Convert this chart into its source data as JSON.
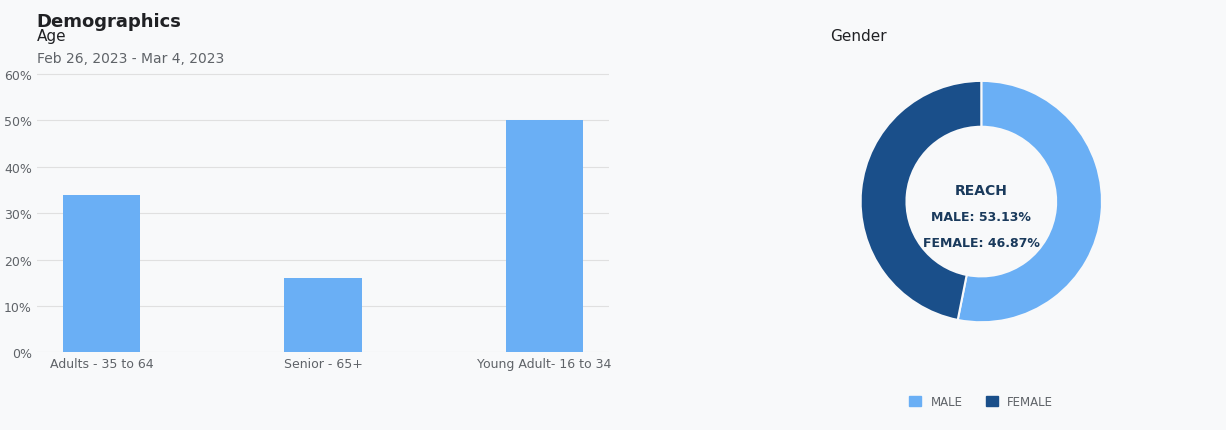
{
  "title": "Demographics",
  "subtitle": "Feb 26, 2023 - Mar 4, 2023",
  "title_color": "#202124",
  "subtitle_color": "#5f6368",
  "background_color": "#f8f9fa",
  "age_label": "Age",
  "bar_categories": [
    "Adults - 35 to 64",
    "Senior - 65+",
    "Young Adult- 16 to 34"
  ],
  "bar_values": [
    0.34,
    0.16,
    0.5
  ],
  "bar_color": "#6aaff5",
  "bar_ylim": [
    0,
    0.65
  ],
  "bar_yticks": [
    0.0,
    0.1,
    0.2,
    0.3,
    0.4,
    0.5,
    0.6
  ],
  "bar_ytick_labels": [
    "0%",
    "10%",
    "20%",
    "30%",
    "40%",
    "50%",
    "60%"
  ],
  "grid_color": "#e0e0e0",
  "gender_label": "Gender",
  "donut_values": [
    53.13,
    46.87
  ],
  "donut_colors": [
    "#6aaff5",
    "#1a4f8a"
  ],
  "donut_labels": [
    "MALE",
    "FEMALE"
  ],
  "donut_center_lines": [
    "REACH",
    "MALE: 53.13%",
    "FEMALE: 46.87%"
  ],
  "donut_center_color": "#1a3a5c",
  "legend_male_color": "#6aaff5",
  "legend_female_color": "#1a4f8a"
}
